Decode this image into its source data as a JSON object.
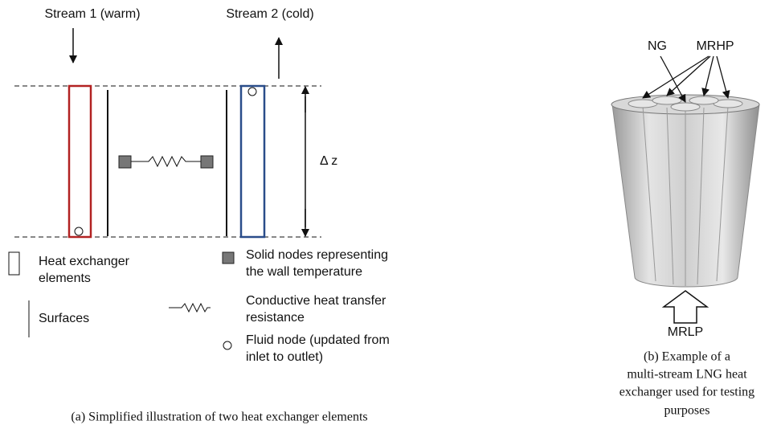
{
  "left": {
    "stream1": "Stream 1 (warm)",
    "stream2": "Stream 2 (cold)",
    "dz": "Δ z",
    "legend": [
      {
        "lines": [
          "Heat exchanger",
          "elements"
        ]
      },
      {
        "lines": [
          "Surfaces"
        ]
      },
      {
        "lines": [
          "Solid nodes representing",
          "the wall temperature"
        ]
      },
      {
        "lines": [
          "Conductive heat transfer",
          "resistance"
        ]
      },
      {
        "lines": [
          "Fluid node (updated from",
          "inlet to outlet)"
        ]
      }
    ],
    "caption": "(a) Simplified illustration of two heat exchanger elements"
  },
  "right": {
    "label_ng": "NG",
    "label_mrhp": "MRHP",
    "label_mrlp": "MRLP",
    "caption": [
      "(b) Example of a",
      "multi-stream LNG heat",
      "exchanger used for testing",
      "purposes"
    ]
  }
}
